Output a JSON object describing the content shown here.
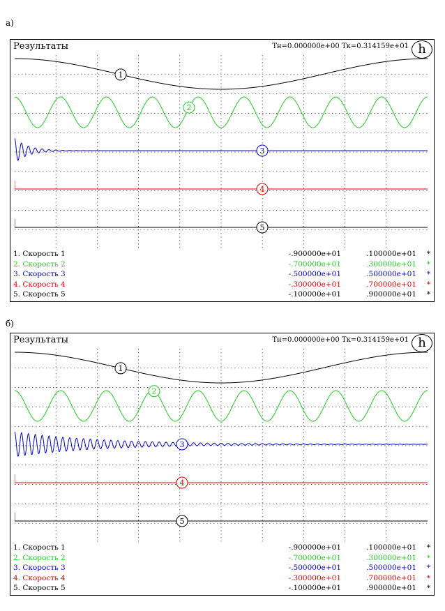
{
  "panels": [
    {
      "caption": "а)",
      "title": "Результаты",
      "time_label": "Тн=0.000000е+00   Тк=0.314159е+01",
      "help_icon": "help-h-icon",
      "help_glyph": "h",
      "legend": [
        {
          "name": "1. Скорость 1",
          "min": "-.900000е+01",
          "max": ".100000е+01",
          "star": "*",
          "color": "#000000"
        },
        {
          "name": "2. Скорость 2",
          "min": "-.700000е+01",
          "max": ".300000е+01",
          "star": "*",
          "color": "#22cc22"
        },
        {
          "name": "3. Скорость 3",
          "min": "-.500000е+01",
          "max": ".500000е+01",
          "star": "*",
          "color": "#0000cc"
        },
        {
          "name": "4. Скорость 4",
          "min": "-.300000е+01",
          "max": ".700000е+01",
          "star": "*",
          "color": "#dd0000"
        },
        {
          "name": "5. Скорость 5",
          "min": "-.100000е+01",
          "max": ".900000е+01",
          "star": "*",
          "color": "#000000"
        }
      ]
    },
    {
      "caption": "б)",
      "title": "Результаты",
      "time_label": "Тн=0.000000е+00   Тк=0.314159е+01",
      "help_icon": "help-h-icon",
      "help_glyph": "h",
      "legend": [
        {
          "name": "1. Скорость 1",
          "min": "-.900000е+01",
          "max": ".100000е+01",
          "star": "*",
          "color": "#000000"
        },
        {
          "name": "2. Скорость 2",
          "min": "-.700000е+01",
          "max": ".300000е+01",
          "star": "*",
          "color": "#22cc22"
        },
        {
          "name": "3. Скорость 3",
          "min": "-.500000е+01",
          "max": ".500000е+01",
          "star": "*",
          "color": "#0000cc"
        },
        {
          "name": "4. Скорость 4",
          "min": "-.300000е+01",
          "max": ".700000е+01",
          "star": "*",
          "color": "#dd0000"
        },
        {
          "name": "5. Скорость 5",
          "min": "-.100000е+01",
          "max": ".900000е+01",
          "star": "*",
          "color": "#000000"
        }
      ]
    }
  ],
  "chart_data": [
    {
      "type": "line",
      "x_range": [
        0,
        3.14159
      ],
      "grid": true,
      "series": [
        {
          "marker": "1",
          "color": "#000000",
          "kind": "cosine",
          "periods": 1.0,
          "damping": 0,
          "decay": 0
        },
        {
          "marker": "2",
          "color": "#22cc22",
          "kind": "cosine",
          "periods": 9.0,
          "damping": 0,
          "decay": 0
        },
        {
          "marker": "3",
          "color": "#0000cc",
          "kind": "damped",
          "periods": 60,
          "damping": 10,
          "decay": 0
        },
        {
          "marker": "4",
          "color": "#dd0000",
          "kind": "step",
          "periods": 0,
          "damping": 0,
          "decay": 0
        },
        {
          "marker": "5",
          "color": "#000000",
          "kind": "step",
          "periods": 0,
          "damping": 0,
          "decay": 0
        }
      ]
    },
    {
      "type": "line",
      "x_range": [
        0,
        3.14159
      ],
      "grid": true,
      "series": [
        {
          "marker": "1",
          "color": "#000000",
          "kind": "cosine",
          "periods": 1.0,
          "damping": 0,
          "decay": 0
        },
        {
          "marker": "2",
          "color": "#22cc22",
          "kind": "cosine",
          "periods": 9.0,
          "damping": 0,
          "decay": 0
        },
        {
          "marker": "3",
          "color": "#0000cc",
          "kind": "damped",
          "periods": 60,
          "damping": 1.6,
          "decay": 0
        },
        {
          "marker": "4",
          "color": "#dd0000",
          "kind": "step",
          "periods": 0,
          "damping": 0,
          "decay": 0
        },
        {
          "marker": "5",
          "color": "#000000",
          "kind": "step",
          "periods": 0,
          "damping": 0,
          "decay": 0
        }
      ]
    }
  ]
}
